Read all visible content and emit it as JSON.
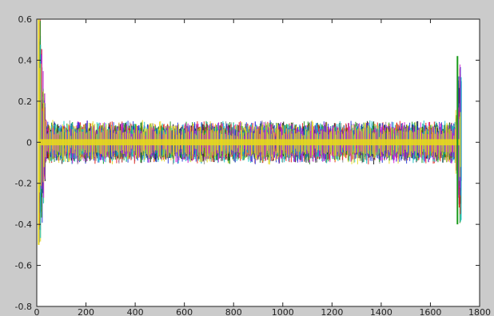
{
  "chart_data": {
    "type": "line",
    "title": "",
    "xlabel": "",
    "ylabel": "",
    "xlim": [
      0,
      1800
    ],
    "ylim": [
      -0.8,
      0.6
    ],
    "x_ticks": [
      0,
      200,
      400,
      600,
      800,
      1000,
      1200,
      1400,
      1600,
      1800
    ],
    "x_tick_labels": [
      "0",
      "200",
      "400",
      "600",
      "800",
      "1000",
      "1200",
      "1400",
      "1600",
      "1800"
    ],
    "y_ticks": [
      -0.8,
      -0.6,
      -0.4,
      -0.2,
      0,
      0.2,
      0.4,
      0.6
    ],
    "y_tick_labels": [
      "-0.8",
      "-0.6",
      "-0.4",
      "-0.2",
      "0",
      "0.2",
      "0.4",
      "0.6"
    ],
    "grid": false,
    "legend": "none",
    "series_count_estimate": "many overlapping noisy traces",
    "x_end": 1720,
    "noise_band": {
      "body_range": [
        -0.08,
        0.1
      ],
      "body_typical_amplitude": 0.07,
      "core_band_color": "#e6d81e",
      "core_band_range": [
        -0.015,
        0.015
      ]
    },
    "edge_features": {
      "left_x": 10,
      "left_max": 0.6,
      "left_min": -0.5,
      "right_x": 1710,
      "right_max": 0.42,
      "right_min": -0.4
    },
    "series_colors": [
      "#e0201c",
      "#1a8f1a",
      "#2432d8",
      "#18c4c4",
      "#d01ad0",
      "#e6d81e",
      "#111111",
      "#888888"
    ]
  }
}
